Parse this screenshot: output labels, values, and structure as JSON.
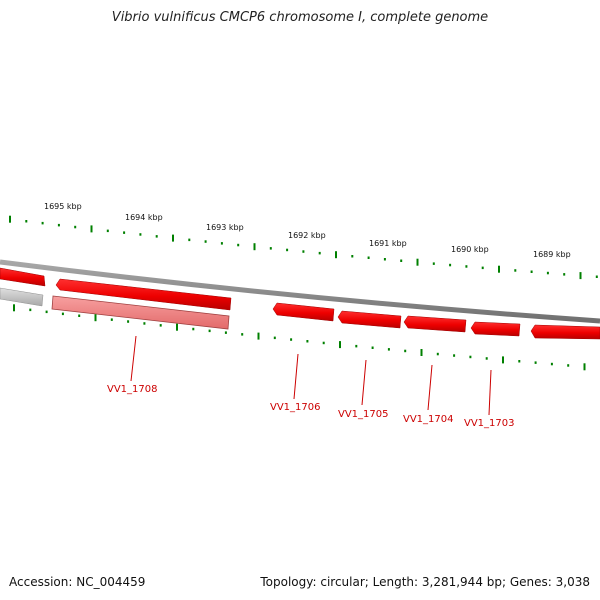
{
  "title": "Vibrio vulnificus CMCP6 chromosome I, complete genome",
  "footer": {
    "accession": "Accession: NC_004459",
    "summary": "Topology: circular; Length: 3,281,944 bp; Genes: 3,038"
  },
  "scale": {
    "unit": "kbp",
    "labels": [
      "1695 kbp",
      "1694 kbp",
      "1693 kbp",
      "1692 kbp",
      "1691 kbp",
      "1690 kbp",
      "1689 kbp"
    ]
  },
  "genes": [
    {
      "name": "VV1_1708",
      "labeled": true
    },
    {
      "name": "VV1_1706",
      "labeled": true
    },
    {
      "name": "VV1_1705",
      "labeled": true
    },
    {
      "name": "VV1_1704",
      "labeled": true
    },
    {
      "name": "VV1_1703",
      "labeled": true
    }
  ],
  "colors": {
    "gene": "#ff0000",
    "gene_dark": "#b00000",
    "gene_selected": "#f08080",
    "pseudo": "#c0c0c0",
    "backbone": "#808080",
    "tick": "#008000",
    "label": "#cc0000"
  }
}
